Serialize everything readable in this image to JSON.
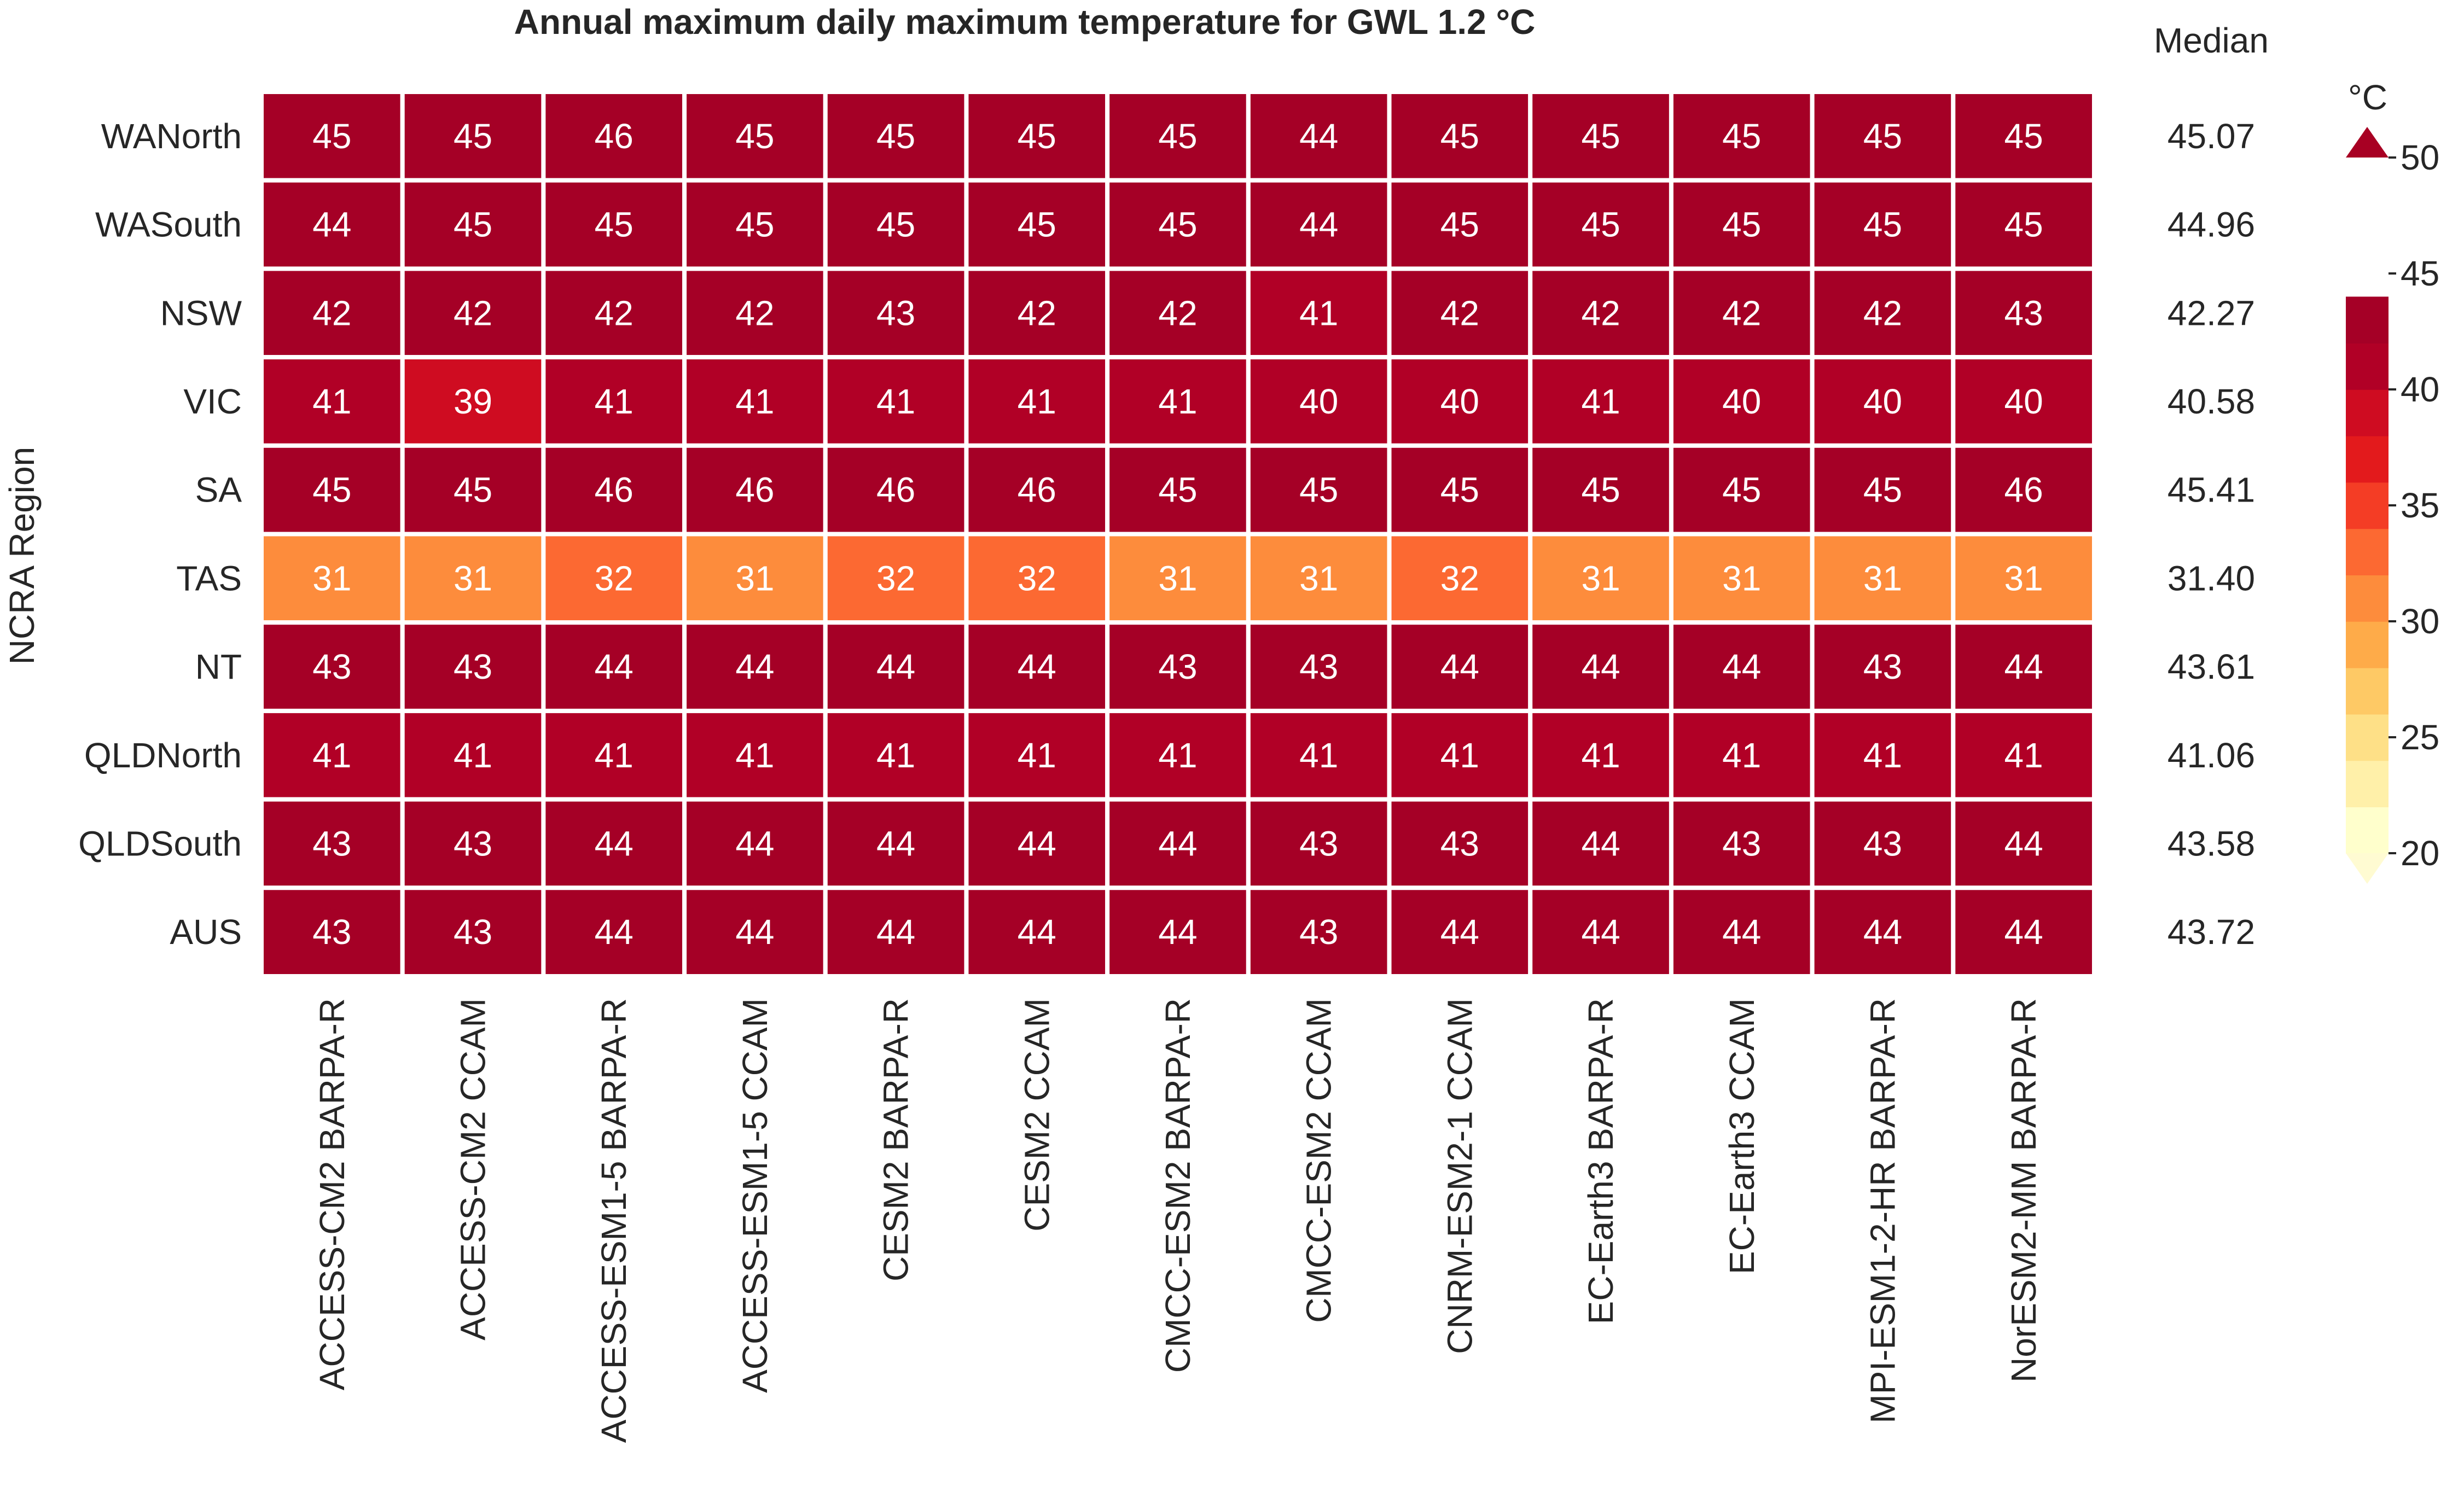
{
  "chart_data": {
    "type": "heatmap",
    "title": "Annual maximum daily maximum temperature for GWL 1.2 °C",
    "ylabel": "NCRA Region",
    "xlabel": "",
    "median_label": "Median",
    "colorbar": {
      "label": "°C",
      "min": 20,
      "max": 50,
      "step": 2,
      "ticks": [
        20,
        25,
        30,
        35,
        40,
        45,
        50
      ],
      "extend": "both",
      "colors": [
        "#ffffcc",
        "#fff0a9",
        "#fee087",
        "#fec965",
        "#feab49",
        "#fd8c3c",
        "#fc6932",
        "#f43d25",
        "#e31a1c",
        "#cf0c21",
        "#b10026",
        "#a50026"
      ],
      "under_color": "#fffbd2",
      "over_color": "#a80023"
    },
    "rows": [
      "WANorth",
      "WASouth",
      "NSW",
      "VIC",
      "SA",
      "TAS",
      "NT",
      "QLDNorth",
      "QLDSouth",
      "AUS"
    ],
    "columns": [
      "ACCESS-CM2 BARPA-R",
      "ACCESS-CM2 CCAM",
      "ACCESS-ESM1-5 BARPA-R",
      "ACCESS-ESM1-5 CCAM",
      "CESM2 BARPA-R",
      "CESM2 CCAM",
      "CMCC-ESM2 BARPA-R",
      "CMCC-ESM2 CCAM",
      "CNRM-ESM2-1 CCAM",
      "EC-Earth3 BARPA-R",
      "EC-Earth3 CCAM",
      "MPI-ESM1-2-HR BARPA-R",
      "NorESM2-MM BARPA-R"
    ],
    "values": [
      [
        45,
        45,
        46,
        45,
        45,
        45,
        45,
        44,
        45,
        45,
        45,
        45,
        45
      ],
      [
        44,
        45,
        45,
        45,
        45,
        45,
        45,
        44,
        45,
        45,
        45,
        45,
        45
      ],
      [
        42,
        42,
        42,
        42,
        43,
        42,
        42,
        41,
        42,
        42,
        42,
        42,
        43
      ],
      [
        41,
        39,
        41,
        41,
        41,
        41,
        41,
        40,
        40,
        41,
        40,
        40,
        40
      ],
      [
        45,
        45,
        46,
        46,
        46,
        46,
        45,
        45,
        45,
        45,
        45,
        45,
        46
      ],
      [
        31,
        31,
        32,
        31,
        32,
        32,
        31,
        31,
        32,
        31,
        31,
        31,
        31
      ],
      [
        43,
        43,
        44,
        44,
        44,
        44,
        43,
        43,
        44,
        44,
        44,
        43,
        44
      ],
      [
        41,
        41,
        41,
        41,
        41,
        41,
        41,
        41,
        41,
        41,
        41,
        41,
        41
      ],
      [
        43,
        43,
        44,
        44,
        44,
        44,
        44,
        43,
        43,
        44,
        43,
        43,
        44
      ],
      [
        43,
        43,
        44,
        44,
        44,
        44,
        44,
        43,
        44,
        44,
        44,
        44,
        44
      ]
    ],
    "medians": [
      "45.07",
      "44.96",
      "42.27",
      "40.58",
      "45.41",
      "31.40",
      "43.61",
      "41.06",
      "43.58",
      "43.72"
    ]
  }
}
